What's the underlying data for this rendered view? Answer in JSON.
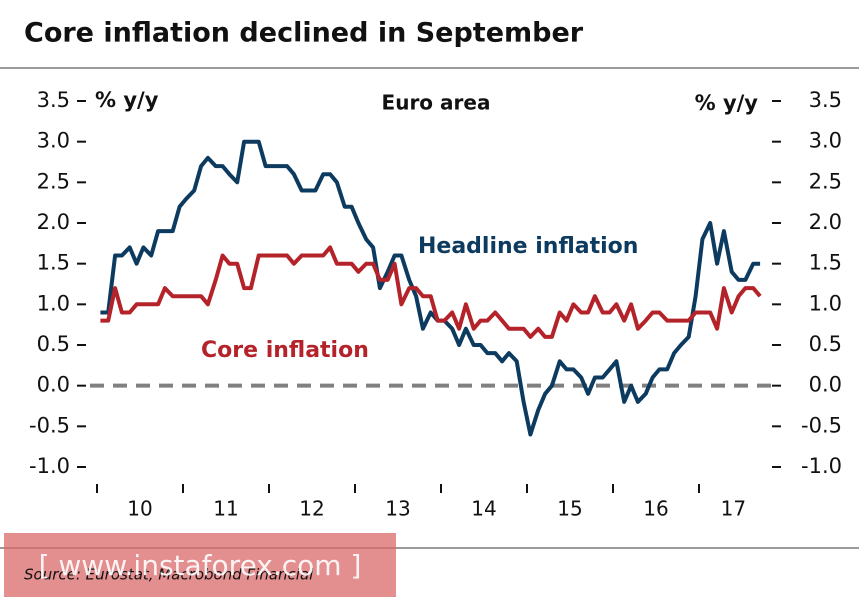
{
  "chart_data": {
    "type": "line",
    "title": "Core inflation declined in September",
    "subtitle": "Euro area",
    "y_unit_left": "% y/y",
    "y_unit_right": "% y/y",
    "source": "Source: Eurostat, Macrobond Financial",
    "watermark": "[ www.instaforex.com ]",
    "x": [
      10.04,
      10.13,
      10.21,
      10.29,
      10.38,
      10.46,
      10.54,
      10.63,
      10.71,
      10.79,
      10.88,
      10.96,
      11.04,
      11.13,
      11.21,
      11.29,
      11.38,
      11.46,
      11.54,
      11.63,
      11.71,
      11.79,
      11.88,
      11.96,
      12.04,
      12.13,
      12.21,
      12.29,
      12.38,
      12.46,
      12.54,
      12.63,
      12.71,
      12.79,
      12.88,
      12.96,
      13.04,
      13.13,
      13.21,
      13.29,
      13.38,
      13.46,
      13.54,
      13.63,
      13.71,
      13.79,
      13.88,
      13.96,
      14.04,
      14.13,
      14.21,
      14.29,
      14.38,
      14.46,
      14.54,
      14.63,
      14.71,
      14.79,
      14.88,
      14.96,
      15.04,
      15.13,
      15.21,
      15.29,
      15.38,
      15.46,
      15.54,
      15.63,
      15.71,
      15.79,
      15.88,
      15.96,
      16.04,
      16.13,
      16.21,
      16.29,
      16.38,
      16.46,
      16.54,
      16.63,
      16.71,
      16.79,
      16.88,
      16.96,
      17.04,
      17.13,
      17.21,
      17.29,
      17.38,
      17.46,
      17.54,
      17.63,
      17.71
    ],
    "series": [
      {
        "name": "Headline inflation",
        "color": "#0d3b60",
        "values": [
          0.9,
          0.9,
          1.6,
          1.6,
          1.7,
          1.5,
          1.7,
          1.6,
          1.9,
          1.9,
          1.9,
          2.2,
          2.3,
          2.4,
          2.7,
          2.8,
          2.7,
          2.7,
          2.6,
          2.5,
          3.0,
          3.0,
          3.0,
          2.7,
          2.7,
          2.7,
          2.7,
          2.6,
          2.4,
          2.4,
          2.4,
          2.6,
          2.6,
          2.5,
          2.2,
          2.2,
          2.0,
          1.8,
          1.7,
          1.2,
          1.4,
          1.6,
          1.6,
          1.3,
          1.1,
          0.7,
          0.9,
          0.8,
          0.8,
          0.7,
          0.5,
          0.7,
          0.5,
          0.5,
          0.4,
          0.4,
          0.3,
          0.4,
          0.3,
          -0.2,
          -0.6,
          -0.3,
          -0.1,
          0.0,
          0.3,
          0.2,
          0.2,
          0.1,
          -0.1,
          0.1,
          0.1,
          0.2,
          0.3,
          -0.2,
          0.0,
          -0.2,
          -0.1,
          0.1,
          0.2,
          0.2,
          0.4,
          0.5,
          0.6,
          1.1,
          1.8,
          2.0,
          1.5,
          1.9,
          1.4,
          1.3,
          1.3,
          1.5,
          1.5
        ]
      },
      {
        "name": "Core inflation",
        "color": "#b5232a",
        "values": [
          0.8,
          0.8,
          1.2,
          0.9,
          0.9,
          1.0,
          1.0,
          1.0,
          1.0,
          1.2,
          1.1,
          1.1,
          1.1,
          1.1,
          1.1,
          1.0,
          1.3,
          1.6,
          1.5,
          1.5,
          1.2,
          1.2,
          1.6,
          1.6,
          1.6,
          1.6,
          1.6,
          1.5,
          1.6,
          1.6,
          1.6,
          1.6,
          1.7,
          1.5,
          1.5,
          1.5,
          1.4,
          1.5,
          1.5,
          1.3,
          1.3,
          1.5,
          1.0,
          1.2,
          1.2,
          1.1,
          1.1,
          0.8,
          0.8,
          0.9,
          0.7,
          1.0,
          0.7,
          0.8,
          0.8,
          0.9,
          0.8,
          0.7,
          0.7,
          0.7,
          0.6,
          0.7,
          0.6,
          0.6,
          0.9,
          0.8,
          1.0,
          0.9,
          0.9,
          1.1,
          0.9,
          0.9,
          1.0,
          0.8,
          1.0,
          0.7,
          0.8,
          0.9,
          0.9,
          0.8,
          0.8,
          0.8,
          0.8,
          0.9,
          0.9,
          0.9,
          0.7,
          1.2,
          0.9,
          1.1,
          1.2,
          1.2,
          1.1
        ]
      }
    ],
    "xlim": [
      10,
      17.75
    ],
    "xticks": [
      10,
      11,
      12,
      13,
      14,
      15,
      16,
      17
    ],
    "xtick_labels": [
      {
        "value": 10.5,
        "label": "10"
      },
      {
        "value": 11.5,
        "label": "11"
      },
      {
        "value": 12.5,
        "label": "12"
      },
      {
        "value": 13.5,
        "label": "13"
      },
      {
        "value": 14.5,
        "label": "14"
      },
      {
        "value": 15.5,
        "label": "15"
      },
      {
        "value": 16.5,
        "label": "16"
      },
      {
        "value": 17.4,
        "label": "17"
      }
    ],
    "ylim": [
      -1.0,
      3.5
    ],
    "yticks": [
      {
        "value": 3.5,
        "label": "3.5"
      },
      {
        "value": 3.0,
        "label": "3.0"
      },
      {
        "value": 2.5,
        "label": "2.5"
      },
      {
        "value": 2.0,
        "label": "2.0"
      },
      {
        "value": 1.5,
        "label": "1.5"
      },
      {
        "value": 1.0,
        "label": "1.0"
      },
      {
        "value": 0.5,
        "label": "0.5"
      },
      {
        "value": 0.0,
        "label": "0.0"
      },
      {
        "value": -0.5,
        "label": "-0.5"
      },
      {
        "value": -1.0,
        "label": "-1.0"
      }
    ],
    "zero_line_color": "#808080"
  }
}
